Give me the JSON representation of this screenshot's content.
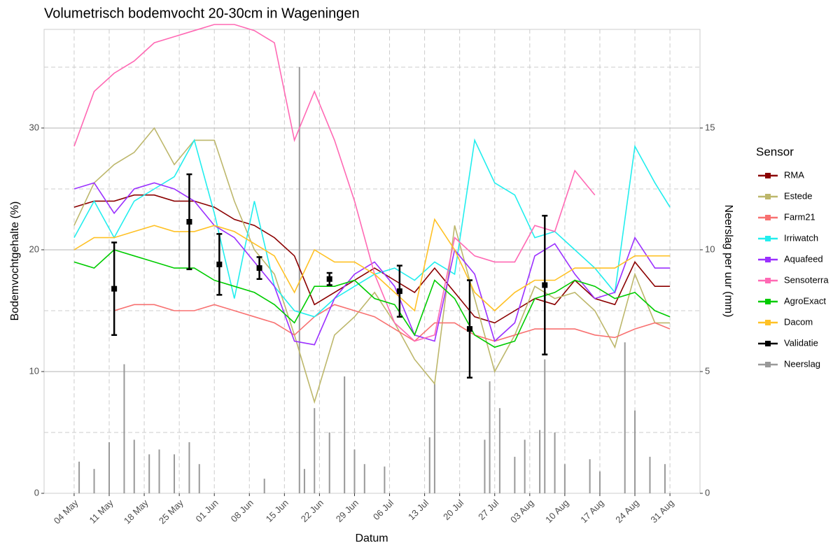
{
  "chart_data": {
    "type": "line",
    "title": "Volumetrisch bodemvocht 20-30cm in Wageningen",
    "x_label": "Datum",
    "y_label": "Bodemvochtgehalte (%)",
    "y2_label": "Neerslag per uur (mm)",
    "legend_title": "Sensor",
    "legend": "right",
    "grid": true,
    "xlim": [
      "28 Apr",
      "06 Sep"
    ],
    "xticks": [
      "04 May",
      "11 May",
      "18 May",
      "25 May",
      "01 Jun",
      "08 Jun",
      "15 Jun",
      "22 Jun",
      "29 Jun",
      "06 Jul",
      "13 Jul",
      "20 Jul",
      "27 Jul",
      "03 Aug",
      "10 Aug",
      "17 Aug",
      "24 Aug",
      "31 Aug"
    ],
    "ylim": [
      0,
      38.1
    ],
    "yticks": [
      0,
      10,
      20,
      30
    ],
    "minor_yticks": [
      5,
      15,
      25,
      35
    ],
    "y2lim": [
      0,
      19.05
    ],
    "y2ticks": [
      0,
      5,
      10,
      15
    ],
    "x": [
      "04 May",
      "08 May",
      "12 May",
      "16 May",
      "20 May",
      "24 May",
      "28 May",
      "01 Jun",
      "05 Jun",
      "09 Jun",
      "13 Jun",
      "17 Jun",
      "21 Jun",
      "25 Jun",
      "29 Jun",
      "03 Jul",
      "07 Jul",
      "11 Jul",
      "15 Jul",
      "19 Jul",
      "23 Jul",
      "27 Jul",
      "31 Jul",
      "04 Aug",
      "08 Aug",
      "12 Aug",
      "16 Aug",
      "20 Aug",
      "24 Aug",
      "28 Aug",
      "31 Aug"
    ],
    "series": [
      {
        "name": "RMA",
        "color": "#8b0000",
        "values": [
          23.5,
          24,
          24,
          24.5,
          24.5,
          24,
          24,
          23.5,
          22.5,
          22,
          21,
          19.5,
          15.5,
          16.5,
          17.5,
          18.5,
          17.5,
          16.5,
          18.5,
          16.5,
          14.5,
          14,
          15,
          16,
          15.5,
          17.5,
          16,
          15.5,
          19,
          17,
          17
        ]
      },
      {
        "name": "Estede",
        "color": "#bdb76b",
        "values": [
          22,
          25.5,
          27,
          28,
          30,
          27,
          29,
          29,
          24,
          20,
          18,
          13,
          7.5,
          13,
          14.5,
          16.5,
          14,
          11,
          9,
          22,
          16,
          10,
          13,
          17,
          16,
          16.5,
          15,
          12,
          18,
          14,
          14
        ]
      },
      {
        "name": "Farm21",
        "color": "#f87171",
        "values": [
          null,
          null,
          15,
          15.5,
          15.5,
          15,
          15,
          15.5,
          15,
          14.5,
          14,
          13,
          14.5,
          15.5,
          15,
          14.5,
          13.5,
          12.5,
          14,
          14,
          13,
          12.5,
          13,
          13.5,
          13.5,
          13.5,
          13,
          12.8,
          13.5,
          14,
          13.5
        ]
      },
      {
        "name": "Irriwatch",
        "color": "#22eeee",
        "values": [
          21,
          24,
          21,
          24,
          25,
          26,
          29,
          23,
          16,
          24,
          17,
          15,
          14.5,
          16,
          17,
          18,
          18.5,
          17.5,
          19,
          18,
          29,
          25.5,
          24.5,
          21,
          21.5,
          20,
          18.5,
          16.5,
          28.5,
          25.5,
          23.5
        ]
      },
      {
        "name": "Aquafeed",
        "color": "#9b30ff",
        "values": [
          25,
          25.5,
          23,
          25,
          25.5,
          25,
          24,
          22,
          21,
          19,
          17,
          12.5,
          12.2,
          16,
          18,
          19,
          17,
          13,
          12.5,
          20,
          18,
          12.5,
          14,
          19.5,
          20.5,
          18,
          16,
          16.5,
          21,
          18.5,
          18.5
        ]
      },
      {
        "name": "Sensoterra",
        "color": "#ff69b4",
        "values": [
          28.5,
          33,
          34.5,
          35.5,
          37,
          37.5,
          38,
          38.5,
          38.5,
          38,
          37,
          29,
          33,
          29,
          24,
          18,
          14,
          12.5,
          13,
          21,
          19.5,
          19,
          19,
          22,
          21.5,
          26.5,
          24.5,
          null,
          null,
          null,
          null
        ]
      },
      {
        "name": "AgroExact",
        "color": "#00cc00",
        "values": [
          19,
          18.5,
          20,
          19.5,
          19,
          18.5,
          18.5,
          17.5,
          17,
          16.5,
          15.5,
          14,
          17,
          17,
          17.5,
          16,
          15.5,
          13,
          17.5,
          16,
          13,
          12,
          12.5,
          16,
          16.5,
          17.5,
          17,
          16,
          16.5,
          15,
          14.5
        ]
      },
      {
        "name": "Dacom",
        "color": "#ffc125",
        "values": [
          20,
          21,
          21,
          21.5,
          22,
          21.5,
          21.5,
          22,
          21.5,
          20.5,
          19.5,
          16.5,
          20,
          19,
          19,
          18,
          16.5,
          15,
          22.5,
          20,
          16.5,
          15,
          16.5,
          17.5,
          17.5,
          18.5,
          18.5,
          18.5,
          19.5,
          19.5,
          19.5
        ]
      },
      {
        "name": "Validatie",
        "color": "#000000",
        "type": "errorbar",
        "x": [
          "12 May",
          "27 May",
          "02 Jun",
          "10 Jun",
          "24 Jun",
          "08 Jul",
          "22 Jul",
          "06 Aug"
        ],
        "values": [
          16.8,
          22.3,
          18.8,
          18.5,
          17.6,
          16.6,
          13.5,
          17.1
        ],
        "errors": [
          3.8,
          3.9,
          2.5,
          0.9,
          0.5,
          2.1,
          4,
          5.7
        ]
      },
      {
        "name": "Neerslag",
        "color": "#999999",
        "type": "bar",
        "axis": "y2",
        "x": [
          "05 May",
          "08 May",
          "11 May",
          "14 May",
          "16 May",
          "19 May",
          "21 May",
          "24 May",
          "27 May",
          "29 May",
          "11 Jun",
          "18 Jun",
          "19 Jun",
          "21 Jun",
          "24 Jun",
          "27 Jun",
          "29 Jun",
          "01 Jul",
          "05 Jul",
          "14 Jul",
          "15 Jul",
          "25 Jul",
          "26 Jul",
          "28 Jul",
          "31 Jul",
          "02 Aug",
          "05 Aug",
          "06 Aug",
          "08 Aug",
          "10 Aug",
          "15 Aug",
          "17 Aug",
          "22 Aug",
          "24 Aug",
          "27 Aug",
          "30 Aug"
        ],
        "values": [
          1.3,
          1,
          2.1,
          5.3,
          2.2,
          1.6,
          1.8,
          1.6,
          2.1,
          1.2,
          0.6,
          17.5,
          1,
          3.5,
          2.5,
          4.8,
          1.8,
          1.2,
          1.1,
          2.3,
          4.5,
          2.2,
          4.6,
          3.5,
          1.5,
          2.2,
          2.6,
          5.5,
          2.5,
          1.2,
          1.4,
          0.9,
          6.2,
          3.4,
          1.5,
          1.2
        ]
      }
    ]
  }
}
